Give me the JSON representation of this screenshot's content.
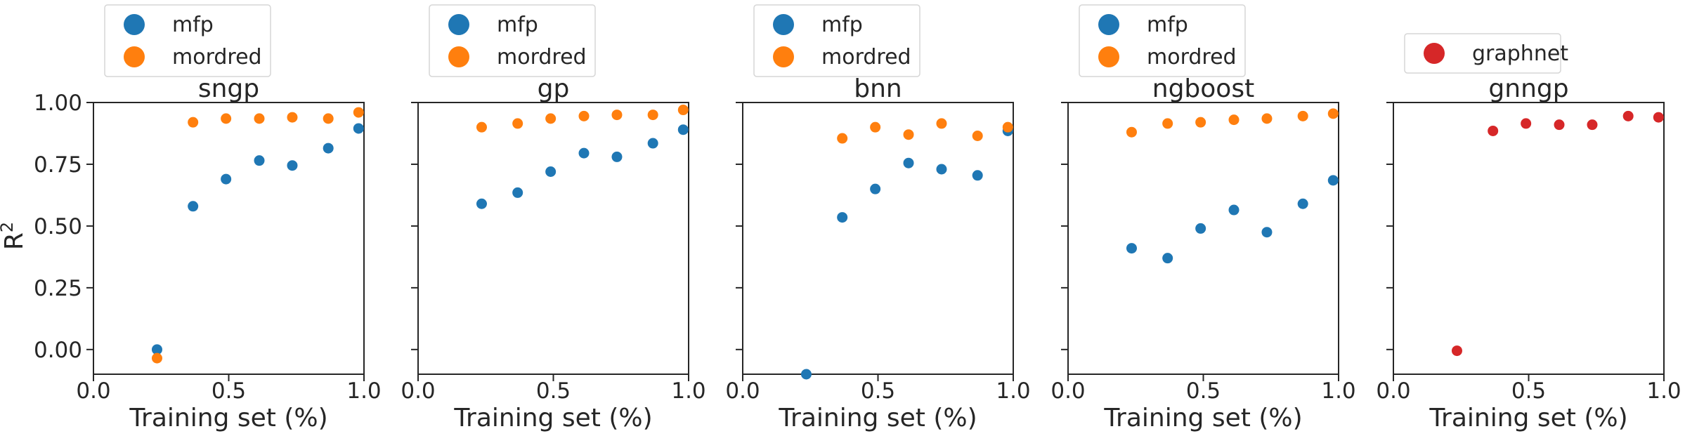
{
  "figure": {
    "ylabel_base": "R",
    "ylabel_sup": "2",
    "xlabel": "Training set (%)"
  },
  "chart_data": [
    {
      "type": "scatter",
      "title": "sngp",
      "xlabel": "Training set (%)",
      "ylabel": "R^2",
      "xlim": [
        0.0,
        1.0
      ],
      "ylim": [
        -0.1,
        1.0
      ],
      "xticks": [
        "0.0",
        "0.5",
        "1.0"
      ],
      "yticks": [
        "0.00",
        "0.25",
        "0.50",
        "0.75",
        "1.00"
      ],
      "grid": false,
      "legend": "top-left",
      "series": [
        {
          "name": "mfp",
          "color": "#1f77b4",
          "points": [
            [
              0.235,
              0.0
            ],
            [
              0.368,
              0.58
            ],
            [
              0.49,
              0.69
            ],
            [
              0.613,
              0.765
            ],
            [
              0.735,
              0.745
            ],
            [
              0.868,
              0.815
            ],
            [
              0.98,
              0.895
            ]
          ]
        },
        {
          "name": "mordred",
          "color": "#ff7f0e",
          "points": [
            [
              0.235,
              -0.035
            ],
            [
              0.368,
              0.92
            ],
            [
              0.49,
              0.935
            ],
            [
              0.613,
              0.935
            ],
            [
              0.735,
              0.94
            ],
            [
              0.868,
              0.935
            ],
            [
              0.98,
              0.96
            ]
          ]
        }
      ]
    },
    {
      "type": "scatter",
      "title": "gp",
      "xlabel": "Training set (%)",
      "ylabel": "R^2",
      "xlim": [
        0.0,
        1.0
      ],
      "ylim": [
        -0.1,
        1.0
      ],
      "xticks": [
        "0.0",
        "0.5",
        "1.0"
      ],
      "yticks": [
        "0.00",
        "0.25",
        "0.50",
        "0.75",
        "1.00"
      ],
      "grid": false,
      "legend": "top-left",
      "series": [
        {
          "name": "mfp",
          "color": "#1f77b4",
          "points": [
            [
              0.235,
              0.59
            ],
            [
              0.368,
              0.635
            ],
            [
              0.49,
              0.72
            ],
            [
              0.613,
              0.795
            ],
            [
              0.735,
              0.78
            ],
            [
              0.868,
              0.835
            ],
            [
              0.98,
              0.89
            ]
          ]
        },
        {
          "name": "mordred",
          "color": "#ff7f0e",
          "points": [
            [
              0.235,
              0.9
            ],
            [
              0.368,
              0.915
            ],
            [
              0.49,
              0.935
            ],
            [
              0.613,
              0.945
            ],
            [
              0.735,
              0.95
            ],
            [
              0.868,
              0.95
            ],
            [
              0.98,
              0.97
            ]
          ]
        }
      ]
    },
    {
      "type": "scatter",
      "title": "bnn",
      "xlabel": "Training set (%)",
      "ylabel": "R^2",
      "xlim": [
        0.0,
        1.0
      ],
      "ylim": [
        -0.1,
        1.0
      ],
      "xticks": [
        "0.0",
        "0.5",
        "1.0"
      ],
      "yticks": [
        "0.00",
        "0.25",
        "0.50",
        "0.75",
        "1.00"
      ],
      "grid": false,
      "legend": "top-left",
      "series": [
        {
          "name": "mfp",
          "color": "#1f77b4",
          "points": [
            [
              0.235,
              -0.1
            ],
            [
              0.368,
              0.535
            ],
            [
              0.49,
              0.65
            ],
            [
              0.613,
              0.755
            ],
            [
              0.735,
              0.73
            ],
            [
              0.868,
              0.705
            ],
            [
              0.98,
              0.885
            ]
          ]
        },
        {
          "name": "mordred",
          "color": "#ff7f0e",
          "points": [
            [
              0.368,
              0.855
            ],
            [
              0.49,
              0.9
            ],
            [
              0.613,
              0.87
            ],
            [
              0.735,
              0.915
            ],
            [
              0.868,
              0.865
            ],
            [
              0.98,
              0.9
            ]
          ]
        }
      ]
    },
    {
      "type": "scatter",
      "title": "ngboost",
      "xlabel": "Training set (%)",
      "ylabel": "R^2",
      "xlim": [
        0.0,
        1.0
      ],
      "ylim": [
        -0.1,
        1.0
      ],
      "xticks": [
        "0.0",
        "0.5",
        "1.0"
      ],
      "yticks": [
        "0.00",
        "0.25",
        "0.50",
        "0.75",
        "1.00"
      ],
      "grid": false,
      "legend": "top-left",
      "series": [
        {
          "name": "mfp",
          "color": "#1f77b4",
          "points": [
            [
              0.235,
              0.41
            ],
            [
              0.368,
              0.37
            ],
            [
              0.49,
              0.49
            ],
            [
              0.613,
              0.565
            ],
            [
              0.735,
              0.475
            ],
            [
              0.868,
              0.59
            ],
            [
              0.98,
              0.685
            ]
          ]
        },
        {
          "name": "mordred",
          "color": "#ff7f0e",
          "points": [
            [
              0.235,
              0.88
            ],
            [
              0.368,
              0.915
            ],
            [
              0.49,
              0.92
            ],
            [
              0.613,
              0.93
            ],
            [
              0.735,
              0.935
            ],
            [
              0.868,
              0.945
            ],
            [
              0.98,
              0.955
            ]
          ]
        }
      ]
    },
    {
      "type": "scatter",
      "title": "gnngp",
      "xlabel": "Training set (%)",
      "ylabel": "R^2",
      "xlim": [
        0.0,
        1.0
      ],
      "ylim": [
        -0.1,
        1.0
      ],
      "xticks": [
        "0.0",
        "0.5",
        "1.0"
      ],
      "yticks": [
        "0.00",
        "0.25",
        "0.50",
        "0.75",
        "1.00"
      ],
      "grid": false,
      "legend": "top-left",
      "series": [
        {
          "name": "graphnet",
          "color": "#d62728",
          "points": [
            [
              0.235,
              -0.005
            ],
            [
              0.368,
              0.885
            ],
            [
              0.49,
              0.915
            ],
            [
              0.613,
              0.91
            ],
            [
              0.735,
              0.91
            ],
            [
              0.868,
              0.945
            ],
            [
              0.98,
              0.94
            ]
          ]
        }
      ]
    }
  ]
}
